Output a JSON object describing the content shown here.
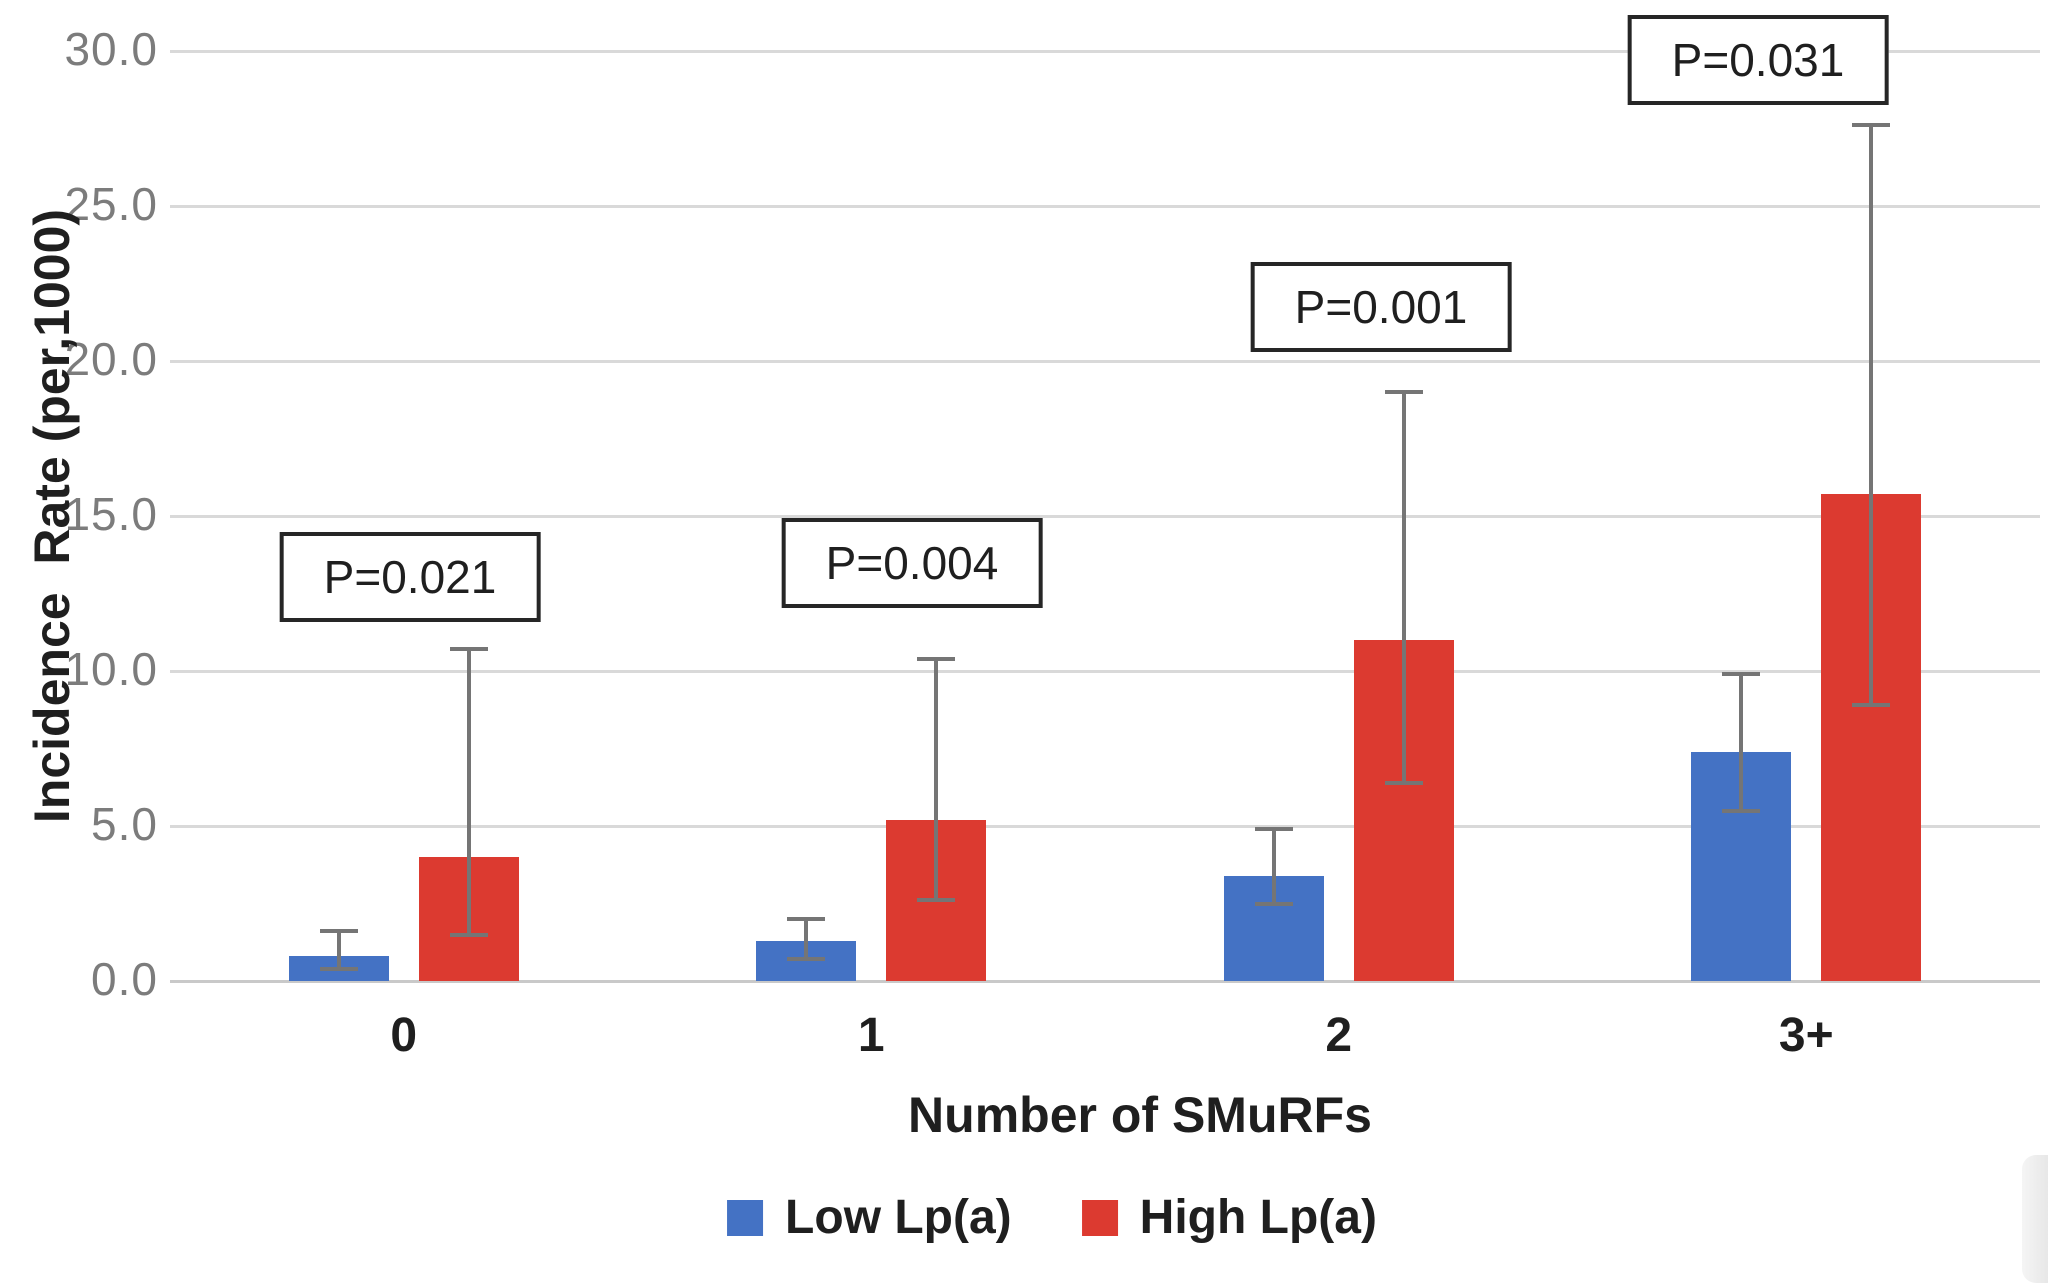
{
  "chart_data": {
    "type": "bar",
    "categories": [
      "0",
      "1",
      "2",
      "3+"
    ],
    "series": [
      {
        "name": "Low Lp(a)",
        "color": "#4472C4",
        "values": [
          0.8,
          1.3,
          3.4,
          7.4
        ],
        "error_low": [
          0.4,
          0.7,
          2.5,
          5.5
        ],
        "error_high": [
          1.6,
          2.0,
          4.9,
          9.9
        ]
      },
      {
        "name": "High Lp(a)",
        "color": "#DC3A30",
        "values": [
          4.0,
          5.2,
          11.0,
          15.7
        ],
        "error_low": [
          1.5,
          2.6,
          6.4,
          8.9
        ],
        "error_high": [
          10.7,
          10.4,
          19.0,
          27.6
        ]
      }
    ],
    "p_values": [
      "P=0.021",
      "P=0.004",
      "P=0.001",
      "P=0.031"
    ],
    "xlabel": "Number of SMuRFs",
    "ylabel": "Incidence  Rate (per,1000)",
    "ylim": [
      0,
      30
    ],
    "ytick_step": 5,
    "ytick_labels": [
      "0.0",
      "5.0",
      "10.0",
      "15.0",
      "20.0",
      "25.0",
      "30.0"
    ],
    "grid": true,
    "legend_position": "bottom",
    "error_bar_color": "#757575",
    "gridline_color": "#D9D9D9",
    "tick_text_color": "#7C7C7C"
  }
}
